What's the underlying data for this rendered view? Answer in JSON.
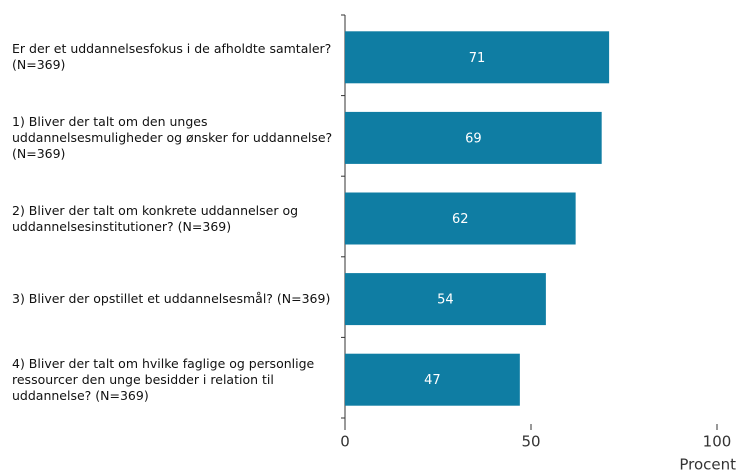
{
  "chart_data": {
    "type": "hbar",
    "categories": [
      "Er der et uddannelsesfokus i de afholdte samtaler? (N=369)",
      "1) Bliver der talt om den unges uddannelsesmuligheder og ønsker for uddannelse? (N=369)",
      "2) Bliver der talt om konkrete uddannelser og uddannelsesinstitutioner? (N=369)",
      "3) Bliver der opstillet et uddannelsesmål? (N=369)",
      "4) Bliver der talt om hvilke faglige og personlige ressourcer den unge besidder i relation til uddannelse? (N=369)"
    ],
    "values": [
      71,
      69,
      62,
      54,
      47
    ],
    "color": "#0f7da3",
    "xlim": [
      0,
      100
    ],
    "xticks": [
      0,
      50,
      100
    ],
    "x_label": "Procent"
  }
}
